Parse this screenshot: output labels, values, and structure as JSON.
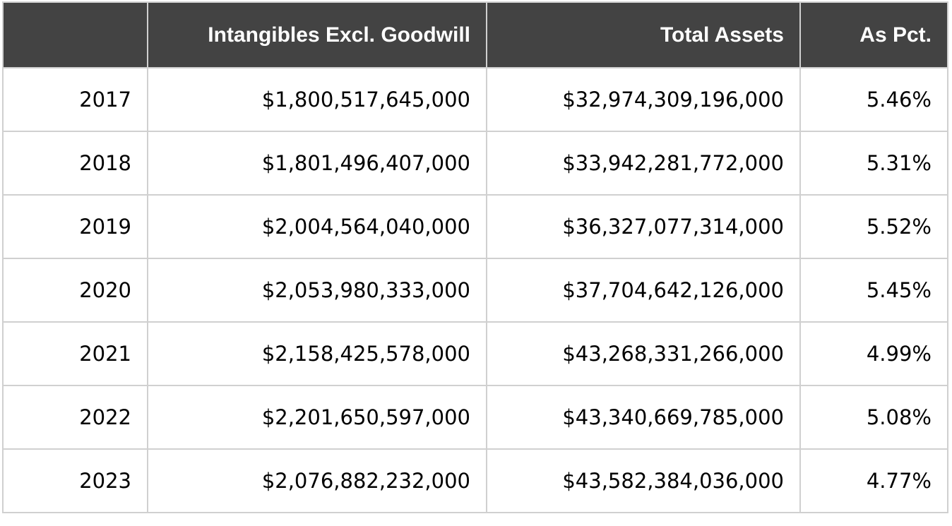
{
  "chart_data": {
    "type": "table",
    "columns": [
      "",
      "Intangibles Excl. Goodwill",
      "Total Assets",
      "As Pct."
    ],
    "rows": [
      {
        "year": "2017",
        "intangibles": "$1,800,517,645,000",
        "total_assets": "$32,974,309,196,000",
        "pct": "5.46%"
      },
      {
        "year": "2018",
        "intangibles": "$1,801,496,407,000",
        "total_assets": "$33,942,281,772,000",
        "pct": "5.31%"
      },
      {
        "year": "2019",
        "intangibles": "$2,004,564,040,000",
        "total_assets": "$36,327,077,314,000",
        "pct": "5.52%"
      },
      {
        "year": "2020",
        "intangibles": "$2,053,980,333,000",
        "total_assets": "$37,704,642,126,000",
        "pct": "5.45%"
      },
      {
        "year": "2021",
        "intangibles": "$2,158,425,578,000",
        "total_assets": "$43,268,331,266,000",
        "pct": "4.99%"
      },
      {
        "year": "2022",
        "intangibles": "$2,201,650,597,000",
        "total_assets": "$43,340,669,785,000",
        "pct": "5.08%"
      },
      {
        "year": "2023",
        "intangibles": "$2,076,882,232,000",
        "total_assets": "$43,582,384,036,000",
        "pct": "4.77%"
      }
    ]
  },
  "colors": {
    "header_bg": "#434343",
    "header_text": "#ffffff",
    "grid": "#d0d0d0"
  }
}
